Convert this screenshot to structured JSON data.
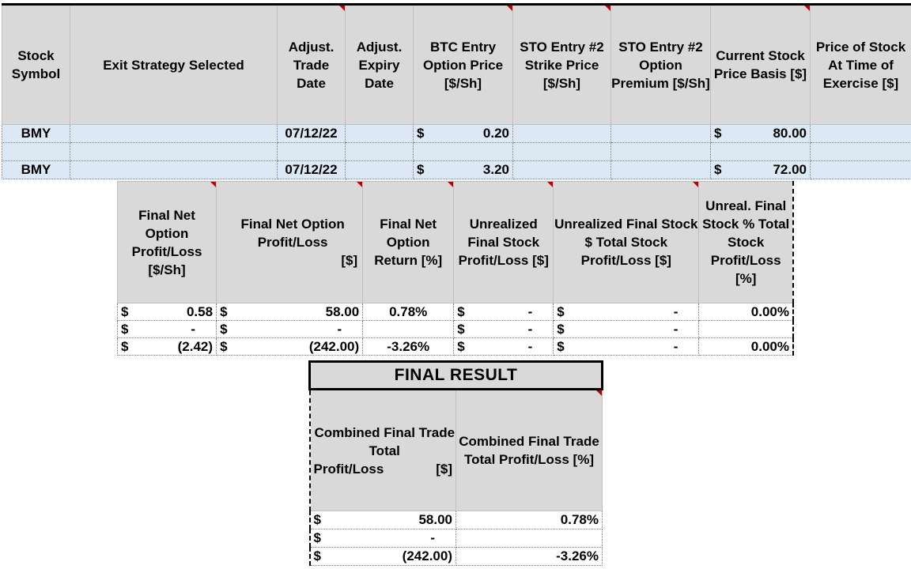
{
  "table1": {
    "headers": [
      "Stock Symbol",
      "Exit Strategy Selected",
      "Adjust. Trade Date",
      "Adjust. Expiry Date",
      "BTC Entry Option Price [$/Sh]",
      "STO Entry #2 Strike Price [$/Sh]",
      "STO Entry #2 Option Premium [$/Sh]",
      "Current Stock Price Basis [$]",
      "Price of Stock At Time of Exercise [$]"
    ],
    "rows": [
      {
        "symbol": "BMY",
        "strategy": "",
        "trade_date": "07/12/22",
        "expiry": "",
        "btc_cur": "$",
        "btc_val": "0.20",
        "sto_strike": "",
        "sto_prem": "",
        "basis_cur": "$",
        "basis_val": "80.00",
        "exercise": ""
      },
      {
        "symbol": "",
        "strategy": "",
        "trade_date": "",
        "expiry": "",
        "btc_cur": "",
        "btc_val": "",
        "sto_strike": "",
        "sto_prem": "",
        "basis_cur": "",
        "basis_val": "",
        "exercise": ""
      },
      {
        "symbol": "BMY",
        "strategy": "",
        "trade_date": "07/12/22",
        "expiry": "",
        "btc_cur": "$",
        "btc_val": "3.20",
        "sto_strike": "",
        "sto_prem": "",
        "basis_cur": "$",
        "basis_val": "72.00",
        "exercise": ""
      }
    ]
  },
  "table2": {
    "headers": [
      "Final Net Option Profit/Loss [$/Sh]",
      "Final Net Option Profit/Loss",
      "[$]",
      "Final Net Option Return [%]",
      "Unrealized Final Stock Profit/Loss [$]",
      "Unrealized Final Stock $ Total Stock Profit/Loss [$]",
      "Unreal. Final Stock % Total Stock Profit/Loss [%]"
    ],
    "rows": [
      {
        "pl_sh_cur": "$",
        "pl_sh": "0.58",
        "pl_cur": "$",
        "pl": "58.00",
        "ret": "0.78%",
        "unr_cur": "$",
        "unr": "-",
        "unr_tot_cur": "$",
        "unr_tot": "-",
        "unr_pct": "0.00%"
      },
      {
        "pl_sh_cur": "$",
        "pl_sh": "-",
        "pl_cur": "$",
        "pl": "-",
        "ret": "",
        "unr_cur": "$",
        "unr": "-",
        "unr_tot_cur": "$",
        "unr_tot": "-",
        "unr_pct": ""
      },
      {
        "pl_sh_cur": "$",
        "pl_sh": "(2.42)",
        "pl_cur": "$",
        "pl": "(242.00)",
        "ret": "-3.26%",
        "unr_cur": "$",
        "unr": "-",
        "unr_tot_cur": "$",
        "unr_tot": "-",
        "unr_pct": "0.00%"
      }
    ]
  },
  "table3": {
    "title": "FINAL RESULT",
    "headers": [
      "Combined Final Trade Total",
      "Profit/Loss",
      "[$]",
      "Combined Final Trade Total Profit/Loss [%]"
    ],
    "rows": [
      {
        "cur": "$",
        "val": "58.00",
        "pct": "0.78%"
      },
      {
        "cur": "$",
        "val": "-",
        "pct": ""
      },
      {
        "cur": "$",
        "val": "(242.00)",
        "pct": "-3.26%"
      }
    ]
  },
  "colors": {
    "header_bg": "#d9d9d9",
    "row_bg": "#dce9f5",
    "comment_marker": "#c00000"
  }
}
